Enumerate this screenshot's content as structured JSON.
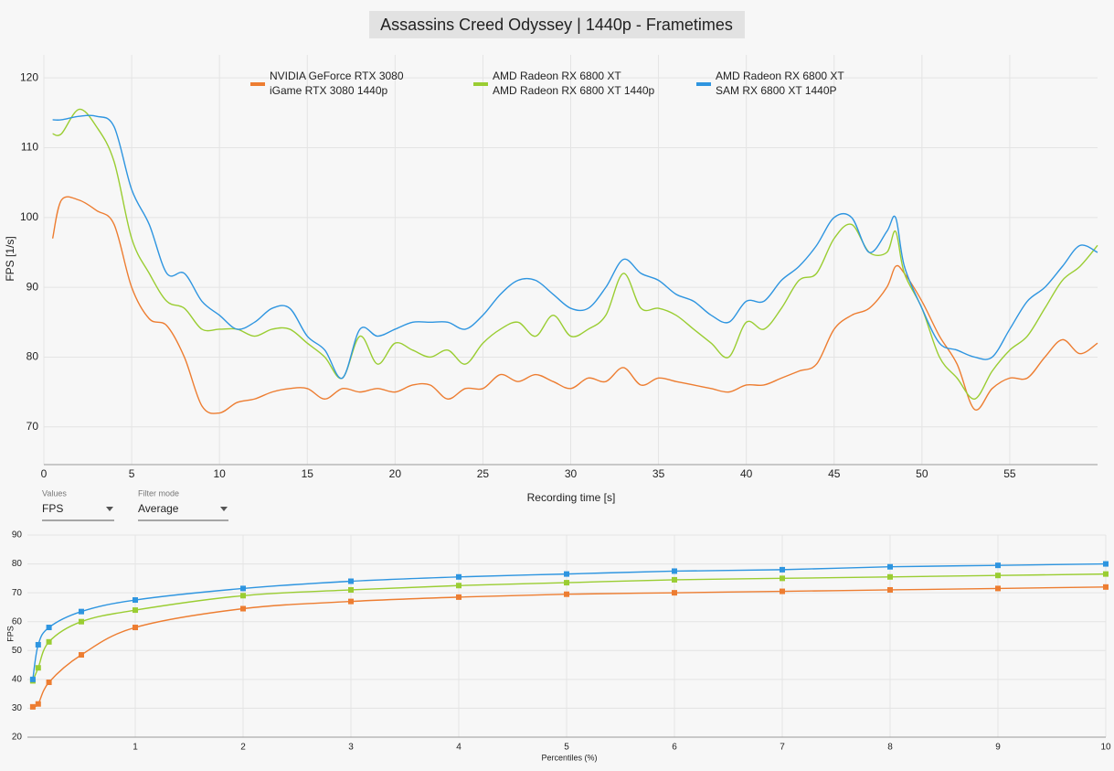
{
  "chart_data": [
    {
      "type": "line",
      "title": "Assassins Creed Odyssey | 1440p - Frametimes",
      "x_label": "Recording time [s]",
      "y_label": "FPS [1/s]",
      "xlim": [
        0,
        60
      ],
      "ylim": [
        64.6,
        123.3
      ],
      "xticks": [
        0,
        5,
        10,
        15,
        20,
        25,
        30,
        35,
        40,
        45,
        50,
        55
      ],
      "yticks": [
        70,
        80,
        90,
        100,
        110,
        120
      ],
      "grid": true,
      "legend": "top",
      "x": [
        0.5,
        1,
        2,
        3,
        4,
        5,
        6,
        7,
        8,
        9,
        10,
        11,
        12,
        13,
        14,
        15,
        16,
        17,
        18,
        19,
        20,
        21,
        22,
        23,
        24,
        25,
        26,
        27,
        28,
        29,
        30,
        31,
        32,
        33,
        34,
        35,
        36,
        37,
        38,
        39,
        40,
        41,
        42,
        43,
        44,
        45,
        46,
        47,
        48,
        48.5,
        49,
        50,
        51,
        52,
        53,
        54,
        55,
        56,
        57,
        58,
        59,
        60
      ],
      "series": [
        {
          "name": "NVIDIA GeForce RTX 3080",
          "comment": "iGame RTX 3080 1440p",
          "color": "#ed7d31",
          "values": [
            97,
            102.5,
            102.5,
            101,
            99,
            90,
            85.5,
            84.5,
            80,
            73,
            72,
            73.5,
            74,
            75,
            75.5,
            75.5,
            74,
            75.5,
            75,
            75.5,
            75,
            76,
            76,
            74,
            75.5,
            75.5,
            77.5,
            76.5,
            77.5,
            76.5,
            75.5,
            77,
            76.5,
            78.5,
            76,
            77,
            76.5,
            76,
            75.5,
            75,
            76,
            76,
            77,
            78,
            79,
            84,
            86,
            87,
            90,
            93,
            92,
            88,
            83,
            79,
            72.5,
            75.5,
            77,
            77,
            80,
            82.5,
            80.5,
            82
          ]
        },
        {
          "name": "AMD Radeon RX 6800 XT",
          "comment": "AMD Radeon RX 6800 XT 1440p",
          "color": "#9acd32",
          "values": [
            112,
            112,
            115.5,
            113,
            108,
            97,
            92,
            88,
            87,
            84,
            84,
            84,
            83,
            84,
            84,
            82,
            80,
            77,
            83,
            79,
            82,
            81,
            80,
            81,
            79,
            82,
            84,
            85,
            83,
            86,
            83,
            84,
            86,
            92,
            87,
            87,
            86,
            84,
            82,
            80,
            85,
            84,
            87,
            91,
            92,
            97,
            99,
            95,
            95,
            98,
            92,
            87,
            80,
            77,
            74,
            78,
            81,
            83,
            87,
            91,
            93,
            96
          ]
        },
        {
          "name": "AMD Radeon RX 6800 XT",
          "comment": "SAM RX 6800 XT 1440P",
          "color": "#2e95e0",
          "values": [
            114,
            114,
            114.5,
            114.5,
            113,
            104,
            99,
            92,
            92,
            88,
            86,
            84,
            85,
            87,
            87,
            83,
            81,
            77,
            84,
            83,
            84,
            85,
            85,
            85,
            84,
            86,
            89,
            91,
            91,
            89,
            87,
            87,
            90,
            94,
            92,
            91,
            89,
            88,
            86,
            85,
            88,
            88,
            91,
            93,
            96,
            100,
            100,
            95,
            98,
            100,
            93,
            87,
            82,
            81,
            80,
            80,
            84,
            88,
            90,
            93,
            96,
            95
          ]
        }
      ]
    },
    {
      "type": "line",
      "x_label": "Percentiles (%)",
      "y_label": "FPS",
      "xlim": [
        0,
        10
      ],
      "ylim": [
        20,
        90
      ],
      "xticks": [
        1,
        2,
        3,
        4,
        5,
        6,
        7,
        8,
        9,
        10
      ],
      "yticks": [
        20,
        30,
        40,
        50,
        60,
        70,
        80,
        90
      ],
      "grid": true,
      "markers": "square",
      "x": [
        0.05,
        0.1,
        0.2,
        0.5,
        1,
        2,
        3,
        4,
        5,
        6,
        7,
        8,
        9,
        10
      ],
      "series": [
        {
          "color": "#ed7d31",
          "values": [
            30.5,
            31.5,
            39,
            48.5,
            58,
            64.5,
            67,
            68.5,
            69.5,
            70,
            70.5,
            71,
            71.5,
            72
          ]
        },
        {
          "color": "#9acd32",
          "values": [
            39.5,
            44,
            53,
            60,
            64,
            69,
            71,
            72.5,
            73.5,
            74.5,
            75,
            75.5,
            76,
            76.5
          ]
        },
        {
          "color": "#2e95e0",
          "values": [
            40,
            52,
            58,
            63.5,
            67.5,
            71.5,
            74,
            75.5,
            76.5,
            77.5,
            78,
            79,
            79.5,
            80
          ]
        }
      ]
    }
  ],
  "controls": [
    {
      "label": "Values",
      "value": "FPS"
    },
    {
      "label": "Filter mode",
      "value": "Average"
    }
  ]
}
